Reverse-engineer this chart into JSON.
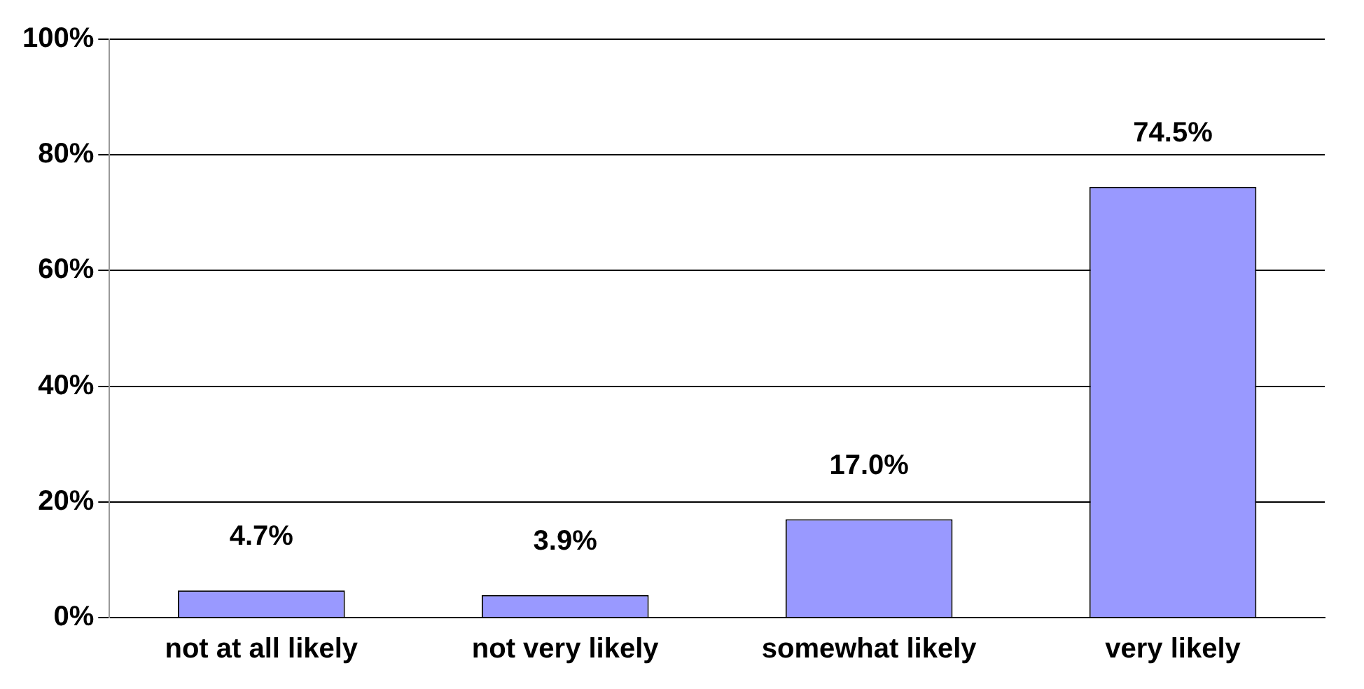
{
  "chart_data": {
    "type": "bar",
    "categories": [
      "not at all likely",
      "not very likely",
      "somewhat likely",
      "very likely"
    ],
    "values": [
      4.7,
      3.9,
      17.0,
      74.5
    ],
    "color": "#9999ff",
    "value_labels": [
      "4.7%",
      "3.9%",
      "17.0%",
      "74.5%"
    ],
    "ylim": [
      0,
      100
    ],
    "yticks": [
      {
        "value": 0,
        "label": "0%"
      },
      {
        "value": 20,
        "label": "20%"
      },
      {
        "value": 40,
        "label": "40%"
      },
      {
        "value": 60,
        "label": "60%"
      },
      {
        "value": 80,
        "label": "80%"
      },
      {
        "value": 100,
        "label": "100%"
      }
    ],
    "grid": "y",
    "legend": false
  }
}
